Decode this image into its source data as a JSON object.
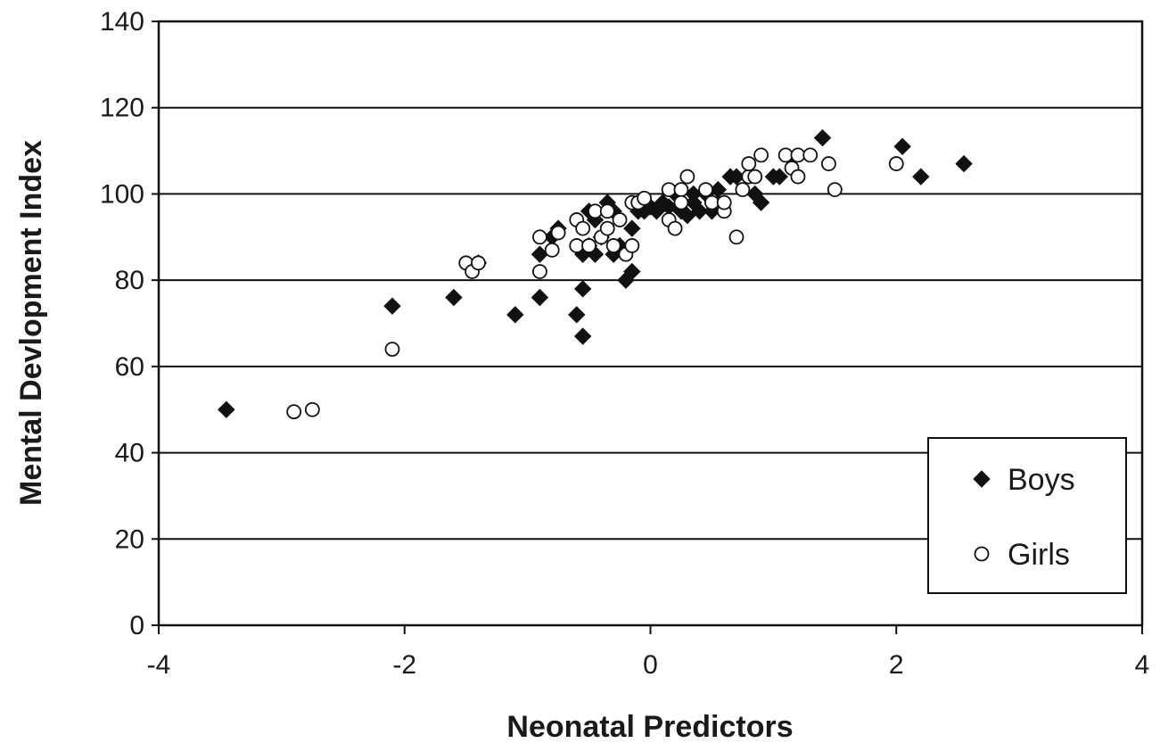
{
  "chart_data": {
    "type": "scatter",
    "title": "",
    "xlabel": "Neonatal Predictors",
    "ylabel": "Mental Devlopment Index",
    "xlim": [
      -4,
      4
    ],
    "ylim": [
      0,
      140
    ],
    "xticks": [
      -4,
      -2,
      0,
      2,
      4
    ],
    "yticks": [
      0,
      20,
      40,
      60,
      80,
      100,
      120,
      140
    ],
    "grid": "horizontal",
    "legend_position": "bottom-right",
    "series": [
      {
        "name": "Boys",
        "marker": "diamond-filled",
        "color": "#111111",
        "points": [
          [
            -3.45,
            50
          ],
          [
            -2.1,
            74
          ],
          [
            -1.6,
            76
          ],
          [
            -1.4,
            84
          ],
          [
            -1.1,
            72
          ],
          [
            -0.9,
            76
          ],
          [
            -0.9,
            86
          ],
          [
            -0.8,
            90
          ],
          [
            -0.75,
            92
          ],
          [
            -0.6,
            72
          ],
          [
            -0.55,
            78
          ],
          [
            -0.55,
            67
          ],
          [
            -0.55,
            86
          ],
          [
            -0.5,
            88
          ],
          [
            -0.45,
            86
          ],
          [
            -0.5,
            96
          ],
          [
            -0.45,
            94
          ],
          [
            -0.4,
            90
          ],
          [
            -0.35,
            98
          ],
          [
            -0.3,
            96
          ],
          [
            -0.3,
            86
          ],
          [
            -0.25,
            88
          ],
          [
            -0.2,
            80
          ],
          [
            -0.15,
            82
          ],
          [
            -0.15,
            92
          ],
          [
            -0.1,
            96
          ],
          [
            -0.05,
            96
          ],
          [
            0.0,
            97
          ],
          [
            0.05,
            96
          ],
          [
            0.1,
            98
          ],
          [
            0.15,
            97
          ],
          [
            0.2,
            100
          ],
          [
            0.25,
            96
          ],
          [
            0.3,
            95
          ],
          [
            0.35,
            98
          ],
          [
            0.35,
            100
          ],
          [
            0.4,
            96
          ],
          [
            0.45,
            100
          ],
          [
            0.5,
            96
          ],
          [
            0.55,
            101
          ],
          [
            0.65,
            104
          ],
          [
            0.7,
            104
          ],
          [
            0.85,
            100
          ],
          [
            0.9,
            98
          ],
          [
            1.0,
            104
          ],
          [
            1.05,
            104
          ],
          [
            1.15,
            108
          ],
          [
            1.4,
            113
          ],
          [
            2.05,
            111
          ],
          [
            2.2,
            104
          ],
          [
            2.55,
            107
          ]
        ]
      },
      {
        "name": "Girls",
        "marker": "circle-open",
        "color": "#111111",
        "points": [
          [
            -2.9,
            49.5
          ],
          [
            -2.75,
            50
          ],
          [
            -2.1,
            64
          ],
          [
            -1.5,
            84
          ],
          [
            -1.45,
            82
          ],
          [
            -1.4,
            84
          ],
          [
            -0.9,
            90
          ],
          [
            -0.9,
            82
          ],
          [
            -0.8,
            87
          ],
          [
            -0.75,
            91
          ],
          [
            -0.6,
            94
          ],
          [
            -0.55,
            92
          ],
          [
            -0.6,
            88
          ],
          [
            -0.5,
            88
          ],
          [
            -0.45,
            96
          ],
          [
            -0.4,
            90
          ],
          [
            -0.35,
            92
          ],
          [
            -0.35,
            96
          ],
          [
            -0.3,
            88
          ],
          [
            -0.25,
            94
          ],
          [
            -0.2,
            86
          ],
          [
            -0.15,
            98
          ],
          [
            -0.15,
            88
          ],
          [
            -0.1,
            98
          ],
          [
            -0.05,
            99
          ],
          [
            0.15,
            101
          ],
          [
            0.15,
            94
          ],
          [
            0.2,
            92
          ],
          [
            0.25,
            101
          ],
          [
            0.25,
            98
          ],
          [
            0.3,
            104
          ],
          [
            0.45,
            101
          ],
          [
            0.5,
            98
          ],
          [
            0.6,
            96
          ],
          [
            0.6,
            98
          ],
          [
            0.7,
            90
          ],
          [
            0.75,
            101
          ],
          [
            0.8,
            104
          ],
          [
            0.8,
            107
          ],
          [
            0.85,
            104
          ],
          [
            0.9,
            109
          ],
          [
            1.1,
            109
          ],
          [
            1.15,
            106
          ],
          [
            1.2,
            104
          ],
          [
            1.2,
            109
          ],
          [
            1.3,
            109
          ],
          [
            1.45,
            107
          ],
          [
            1.5,
            101
          ],
          [
            2.0,
            107
          ]
        ]
      }
    ]
  }
}
